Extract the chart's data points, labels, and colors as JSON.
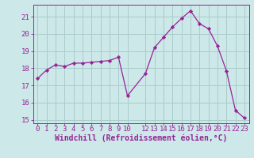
{
  "x": [
    0,
    1,
    2,
    3,
    4,
    5,
    6,
    7,
    8,
    9,
    10,
    12,
    13,
    14,
    15,
    16,
    17,
    18,
    19,
    20,
    21,
    22,
    23
  ],
  "y": [
    17.4,
    17.9,
    18.2,
    18.1,
    18.3,
    18.3,
    18.35,
    18.4,
    18.45,
    18.65,
    16.4,
    17.7,
    19.2,
    19.8,
    20.4,
    20.9,
    21.35,
    20.6,
    20.3,
    19.3,
    17.85,
    15.55,
    15.1
  ],
  "line_color": "#992299",
  "marker": "D",
  "marker_size": 2.2,
  "bg_color": "#cce8e8",
  "grid_color": "#aacccc",
  "tick_color": "#992299",
  "label_color": "#992299",
  "xlabel": "Windchill (Refroidissement éolien,°C)",
  "ylabel": "",
  "xlim": [
    -0.5,
    23.5
  ],
  "ylim": [
    14.8,
    21.7
  ],
  "yticks": [
    15,
    16,
    17,
    18,
    19,
    20,
    21
  ],
  "xtick_positions": [
    0,
    1,
    2,
    3,
    4,
    5,
    6,
    7,
    8,
    9,
    10,
    12,
    13,
    14,
    15,
    16,
    17,
    18,
    19,
    20,
    21,
    22,
    23
  ],
  "xtick_labels": [
    "0",
    "1",
    "2",
    "3",
    "4",
    "5",
    "6",
    "7",
    "8",
    "9",
    "10",
    "12",
    "13",
    "14",
    "15",
    "16",
    "17",
    "18",
    "19",
    "20",
    "21",
    "22",
    "23"
  ],
  "font_size": 6.5,
  "xlabel_fontsize": 7.0
}
